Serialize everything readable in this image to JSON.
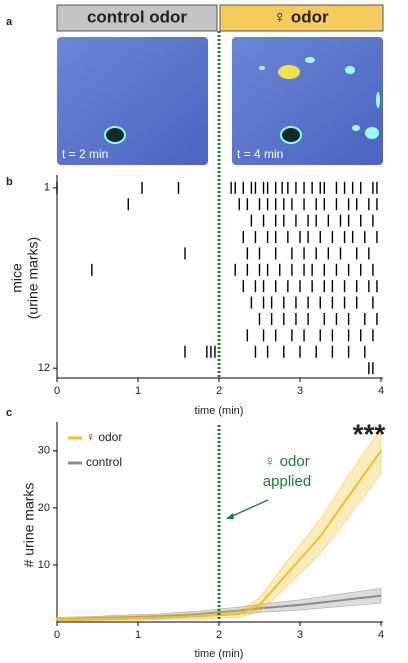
{
  "panel_labels": [
    "a",
    "b",
    "c"
  ],
  "header": {
    "left": "control odor",
    "right": "♀ odor"
  },
  "images": {
    "left_time": "t = 2 min",
    "right_time": "t = 4 min"
  },
  "chart_data": [
    {
      "type": "raster",
      "xlabel": "time (min)",
      "ylabel": [
        "mice",
        "(urine marks)"
      ],
      "xlim": [
        0,
        4
      ],
      "xticks": [
        0,
        1,
        2,
        3,
        4
      ],
      "ylim": [
        0.4,
        12.6
      ],
      "yticks": [
        1,
        12
      ],
      "vline": 2,
      "color": "#000000",
      "series": [
        {
          "values": [
            0.0,
            1.05,
            1.5,
            2.15,
            2.2,
            2.3,
            2.4,
            2.45,
            2.55,
            2.6,
            2.7,
            2.78,
            2.85,
            2.95,
            3.05,
            3.15,
            3.25,
            3.3,
            3.45,
            3.55,
            3.65,
            3.75,
            3.9,
            3.95
          ]
        },
        {
          "values": [
            0.88,
            2.25,
            2.35,
            2.5,
            2.6,
            2.7,
            2.8,
            2.9,
            3.05,
            3.2,
            3.3,
            3.45,
            3.6,
            3.7,
            3.85,
            3.95
          ]
        },
        {
          "values": [
            2.4,
            2.55,
            2.7,
            2.8,
            2.95,
            3.1,
            3.2,
            3.35,
            3.5,
            3.6,
            3.75,
            3.9
          ]
        },
        {
          "values": [
            2.3,
            2.45,
            2.6,
            2.7,
            2.85,
            3.0,
            3.1,
            3.25,
            3.4,
            3.55,
            3.65,
            3.8,
            3.95
          ]
        },
        {
          "values": [
            1.58,
            2.35,
            2.5,
            2.7,
            2.9,
            3.05,
            3.2,
            3.35,
            3.5,
            3.7,
            3.85
          ]
        },
        {
          "values": [
            0.43,
            2.2,
            2.35,
            2.5,
            2.6,
            2.75,
            2.9,
            3.05,
            3.15,
            3.3,
            3.45,
            3.6,
            3.75,
            3.9
          ]
        },
        {
          "values": [
            2.3,
            2.45,
            2.55,
            2.7,
            2.85,
            3.0,
            3.15,
            3.3,
            3.4,
            3.55,
            3.7,
            3.85,
            3.95
          ]
        },
        {
          "values": [
            2.4,
            2.55,
            2.65,
            2.8,
            2.95,
            3.1,
            3.25,
            3.4,
            3.55,
            3.7,
            3.9
          ]
        },
        {
          "values": [
            2.5,
            2.65,
            2.8,
            2.95,
            3.1,
            3.3,
            3.45,
            3.6,
            3.8,
            3.95
          ]
        },
        {
          "values": [
            2.35,
            2.55,
            2.7,
            2.9,
            3.05,
            3.25,
            3.4,
            3.6,
            3.75,
            3.9
          ]
        },
        {
          "values": [
            1.58,
            1.85,
            1.9,
            1.95,
            2.45,
            2.6,
            2.8,
            3.0,
            3.2,
            3.4,
            3.6,
            3.8
          ]
        },
        {
          "values": [
            3.85,
            3.9
          ]
        }
      ]
    },
    {
      "type": "line",
      "xlabel": "time (min)",
      "ylabel": "# urine marks",
      "xlim": [
        0,
        4
      ],
      "xticks": [
        0,
        1,
        2,
        3,
        4
      ],
      "ylim": [
        0,
        34
      ],
      "yticks": [
        10,
        20,
        30
      ],
      "vline": 2,
      "legend": "upper left",
      "annotation": [
        "♀ odor",
        "applied"
      ],
      "significance": "***",
      "x": [
        0,
        0.25,
        0.5,
        0.75,
        1,
        1.25,
        1.5,
        1.75,
        2,
        2.25,
        2.5,
        2.75,
        3,
        3.25,
        3.5,
        3.75,
        4
      ],
      "series": [
        {
          "name": "♀ odor",
          "color": "#f0c020",
          "values": [
            0.5,
            0.5,
            0.5,
            0.6,
            0.7,
            0.8,
            0.9,
            1.0,
            1.2,
            1.4,
            3,
            7,
            11,
            15,
            20,
            25,
            30
          ],
          "errors": [
            0.3,
            0.3,
            0.3,
            0.3,
            0.4,
            0.4,
            0.4,
            0.5,
            0.5,
            0.6,
            1.2,
            2,
            2.5,
            3,
            3.5,
            3.8,
            4
          ]
        },
        {
          "name": "control",
          "color": "#8c8c8c",
          "values": [
            0.5,
            0.6,
            0.7,
            0.8,
            0.9,
            1.0,
            1.2,
            1.4,
            1.7,
            2.0,
            2.4,
            2.7,
            3.0,
            3.4,
            3.8,
            4.2,
            4.6
          ],
          "errors": [
            0.3,
            0.3,
            0.3,
            0.4,
            0.4,
            0.4,
            0.5,
            0.5,
            0.6,
            0.6,
            0.7,
            0.8,
            0.9,
            1.0,
            1.1,
            1.2,
            1.3
          ]
        }
      ]
    }
  ]
}
